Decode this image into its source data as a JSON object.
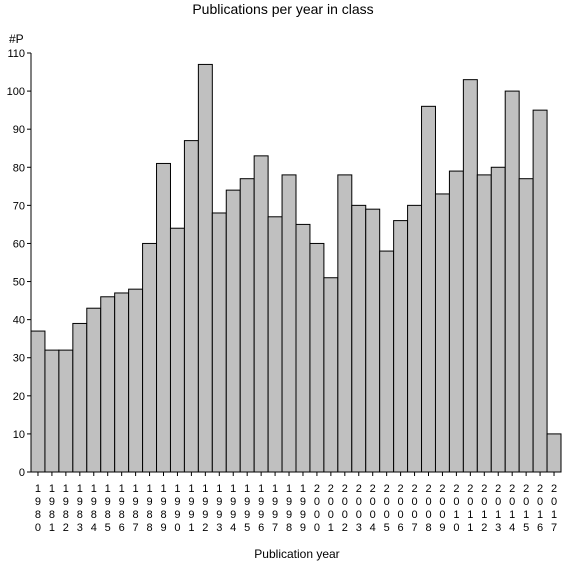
{
  "chart_data": {
    "type": "bar",
    "title": "Publications per year in class",
    "xlabel": "Publication year",
    "ylabel": "#P",
    "ylim": [
      0,
      110
    ],
    "yticks": [
      0,
      10,
      20,
      30,
      40,
      50,
      60,
      70,
      80,
      90,
      100,
      110
    ],
    "grid": false,
    "categories": [
      "1980",
      "1981",
      "1982",
      "1983",
      "1984",
      "1985",
      "1986",
      "1987",
      "1988",
      "1989",
      "1990",
      "1991",
      "1992",
      "1993",
      "1994",
      "1995",
      "1996",
      "1997",
      "1998",
      "1999",
      "2000",
      "2001",
      "2002",
      "2003",
      "2004",
      "2005",
      "2006",
      "2007",
      "2008",
      "2009",
      "2010",
      "2011",
      "2012",
      "2013",
      "2014",
      "2015",
      "2016",
      "2017"
    ],
    "values": [
      37,
      32,
      32,
      39,
      43,
      46,
      47,
      48,
      60,
      81,
      64,
      87,
      107,
      68,
      74,
      77,
      83,
      67,
      78,
      65,
      60,
      51,
      78,
      70,
      69,
      58,
      66,
      70,
      96,
      73,
      79,
      103,
      78,
      80,
      100,
      77,
      95,
      10
    ],
    "bar_color": "#c0c0c0",
    "edge_color": "#000000"
  }
}
